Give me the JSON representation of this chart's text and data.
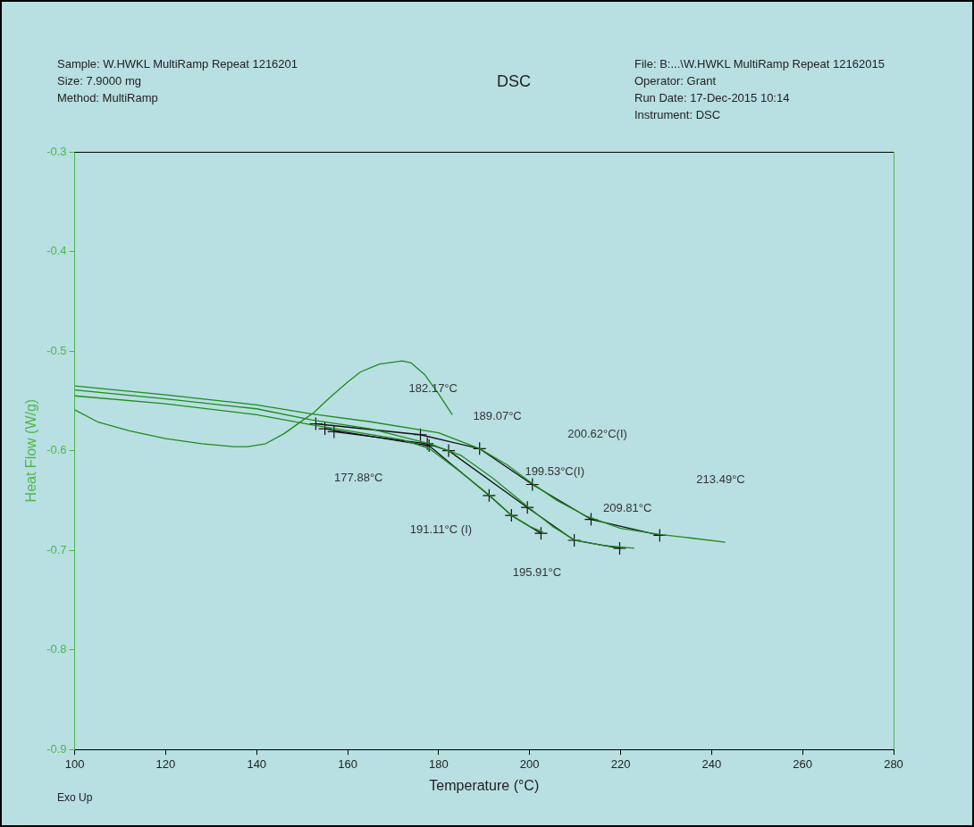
{
  "chart_data": {
    "type": "line",
    "title": "DSC",
    "xlabel": "Temperature (°C)",
    "ylabel": "Heat Flow (W/g)",
    "xlim": [
      100,
      280
    ],
    "xticks": [
      100,
      120,
      140,
      160,
      180,
      200,
      220,
      240,
      260,
      280
    ],
    "ylim": [
      -0.9,
      -0.3
    ],
    "yticks": [
      -0.9,
      -0.8,
      -0.7,
      -0.6,
      -0.5,
      -0.4,
      -0.3
    ],
    "grid": false,
    "legend": false,
    "marker": "none",
    "line_style": "solid",
    "series": [
      {
        "color": "#1e8c1e",
        "x": [
          100,
          105,
          112,
          120,
          128,
          135,
          138,
          142,
          146,
          150,
          152.5,
          156,
          160,
          162.8,
          167,
          172,
          174,
          177,
          180,
          183
        ],
        "values": [
          -0.559,
          -0.571,
          -0.58,
          -0.588,
          -0.593,
          -0.596,
          -0.596,
          -0.593,
          -0.583,
          -0.57,
          -0.562,
          -0.547,
          -0.531,
          -0.521,
          -0.513,
          -0.51,
          -0.512,
          -0.524,
          -0.543,
          -0.564
        ]
      },
      {
        "color": "#1e8c1e",
        "x": [
          100,
          120,
          140,
          152,
          165,
          180,
          189,
          195,
          200.6,
          206,
          212.6,
          220,
          228.6,
          236,
          243
        ],
        "values": [
          -0.535,
          -0.544,
          -0.554,
          -0.563,
          -0.571,
          -0.582,
          -0.598,
          -0.614,
          -0.633,
          -0.65,
          -0.666,
          -0.678,
          -0.684,
          -0.688,
          -0.692
        ]
      },
      {
        "color": "#1e8c1e",
        "x": [
          100,
          120,
          140,
          152,
          165,
          178,
          185,
          192,
          199.5,
          205,
          210,
          216,
          223
        ],
        "values": [
          -0.539,
          -0.548,
          -0.558,
          -0.569,
          -0.578,
          -0.593,
          -0.605,
          -0.628,
          -0.656,
          -0.676,
          -0.69,
          -0.695,
          -0.698
        ]
      },
      {
        "color": "#1e8c1e",
        "x": [
          100,
          120,
          140,
          152,
          164,
          172,
          178,
          185,
          191,
          196,
          200,
          203
        ],
        "values": [
          -0.545,
          -0.553,
          -0.564,
          -0.574,
          -0.583,
          -0.589,
          -0.598,
          -0.622,
          -0.644,
          -0.665,
          -0.676,
          -0.682
        ]
      },
      {
        "color": "#111111",
        "marker": "cross",
        "x": [
          153,
          176,
          189,
          200.6,
          213.5,
          228.6
        ],
        "values": [
          -0.573,
          -0.584,
          -0.598,
          -0.634,
          -0.669,
          -0.685
        ]
      },
      {
        "color": "#111111",
        "marker": "cross",
        "x": [
          157,
          177.5,
          182.2,
          199.5,
          209.8,
          219.8
        ],
        "values": [
          -0.581,
          -0.593,
          -0.6,
          -0.657,
          -0.69,
          -0.698
        ]
      },
      {
        "color": "#111111",
        "marker": "cross",
        "x": [
          155,
          177.9,
          191.1,
          196,
          202.5
        ],
        "values": [
          -0.578,
          -0.595,
          -0.645,
          -0.665,
          -0.683
        ]
      }
    ],
    "annotations": [
      "Sample: W.HWKL MultiRamp Repeat 1216201",
      "Size:  7.9000 mg",
      "Method: MultiRamp",
      "File: B:...\\W.HWKL MultiRamp Repeat 12162015",
      "Operator: Grant",
      "Run Date: 17-Dec-2015 10:14",
      "Instrument: DSC",
      "Exo Up",
      "177.88°C",
      "182.17°C",
      "189.07°C",
      "200.62°C(I)",
      "199.53°C(I)",
      "213.49°C",
      "209.81°C",
      "191.11°C (I)",
      "195.91°C"
    ]
  }
}
